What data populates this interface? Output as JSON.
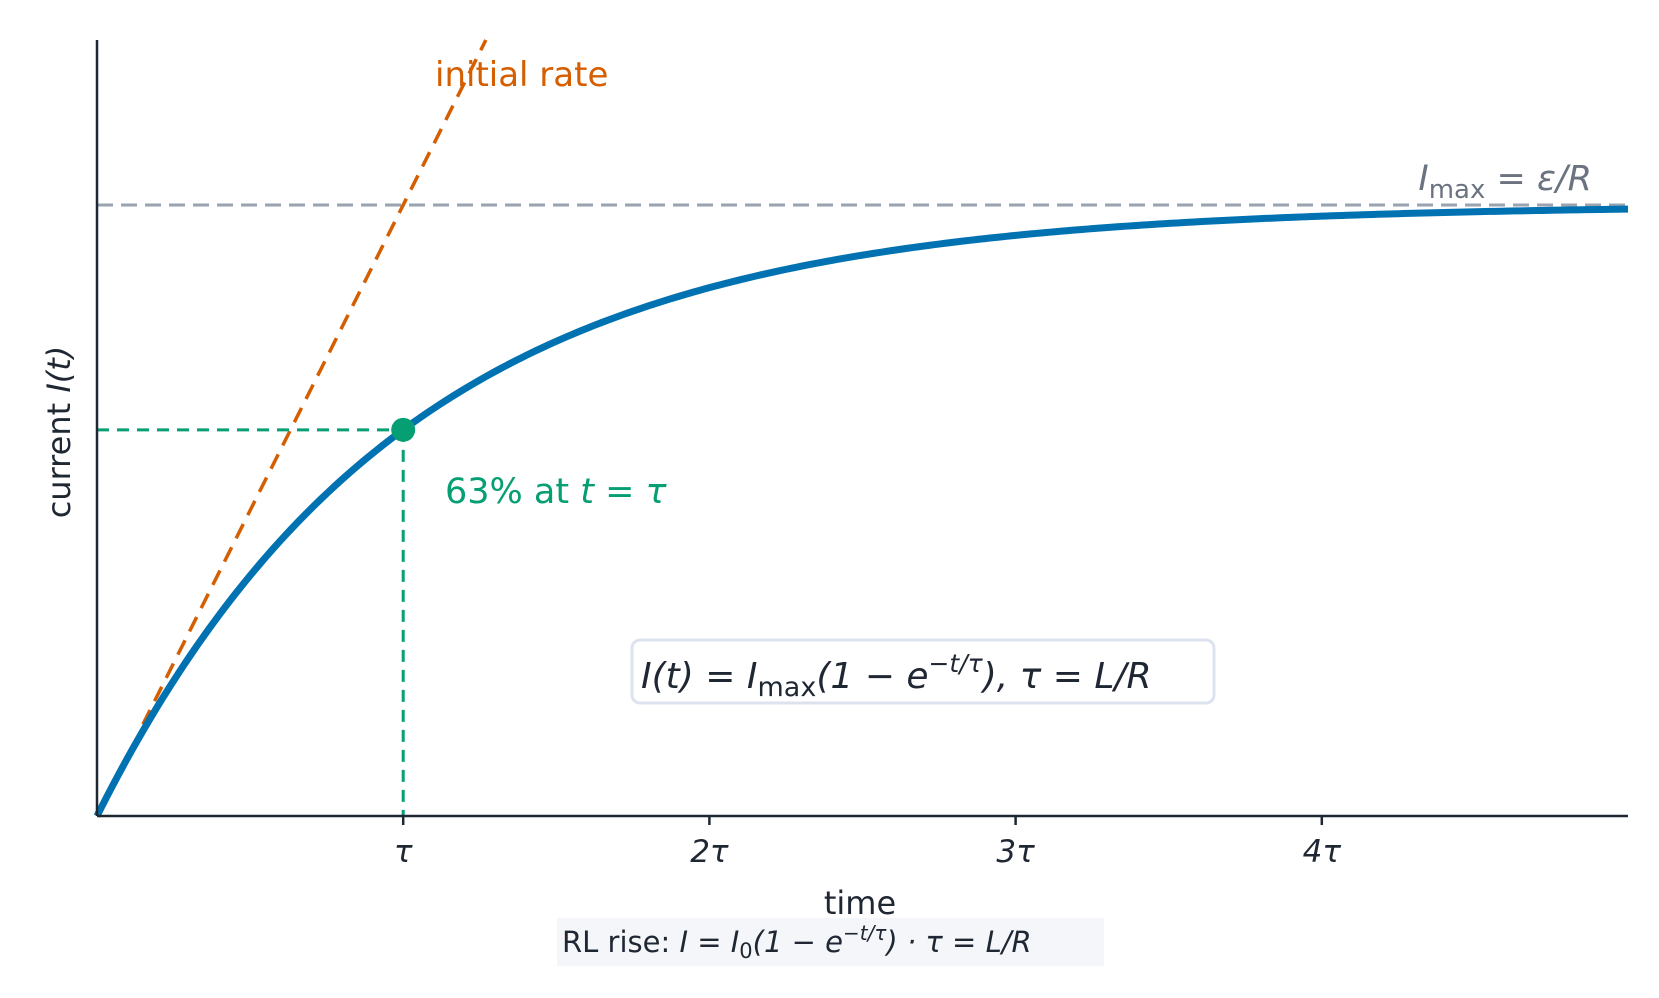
{
  "chart_data": {
    "type": "line",
    "title": "",
    "xlabel": "time",
    "ylabel_text": "current ",
    "ylabel_math": "I(t)",
    "xlim": [
      0,
      5
    ],
    "ylim": [
      0,
      1.27
    ],
    "x_ticks": [
      1,
      2,
      3,
      4
    ],
    "x_tick_labels": [
      "τ",
      "2τ",
      "3τ",
      "4τ"
    ],
    "y_ticks": [],
    "grid": false,
    "series": [
      {
        "label": "I(t) = I_max (1 − e^(−t/τ))",
        "function": "1 - exp(-x)",
        "x_range": [
          0,
          5
        ],
        "color": "#0072b2"
      }
    ],
    "asymptote": {
      "y": 1.0,
      "color": "#9aa3b0",
      "label_I": "I",
      "label_sub": "max",
      "label_rest": " = ε/R"
    },
    "tangent": {
      "slope": 1,
      "intercept": 0,
      "color": "#d55e00",
      "label": "initial rate"
    },
    "marker": {
      "x": 1,
      "y": 0.632,
      "color": "#069e73",
      "label_prefix": "63% at ",
      "label_math": "t = τ"
    },
    "formula_box": {
      "text": "I(t) = I",
      "sub": "max",
      "mid": "(1 − e",
      "sup": "−t/τ",
      "end": "),   τ = L/R"
    },
    "caption": {
      "prefix": "RL rise: ",
      "math_a": "I = I",
      "sub": "0",
      "math_b": "(1 − e",
      "sup": "−t/τ",
      "math_c": ")  ·  τ = L/R"
    },
    "colors": {
      "axis": "#1f2733",
      "text": "#1f2733",
      "asymptote_label": "#6b7380",
      "box_border": "#dce3ee",
      "caption_bg": "#f4f6f9"
    }
  }
}
